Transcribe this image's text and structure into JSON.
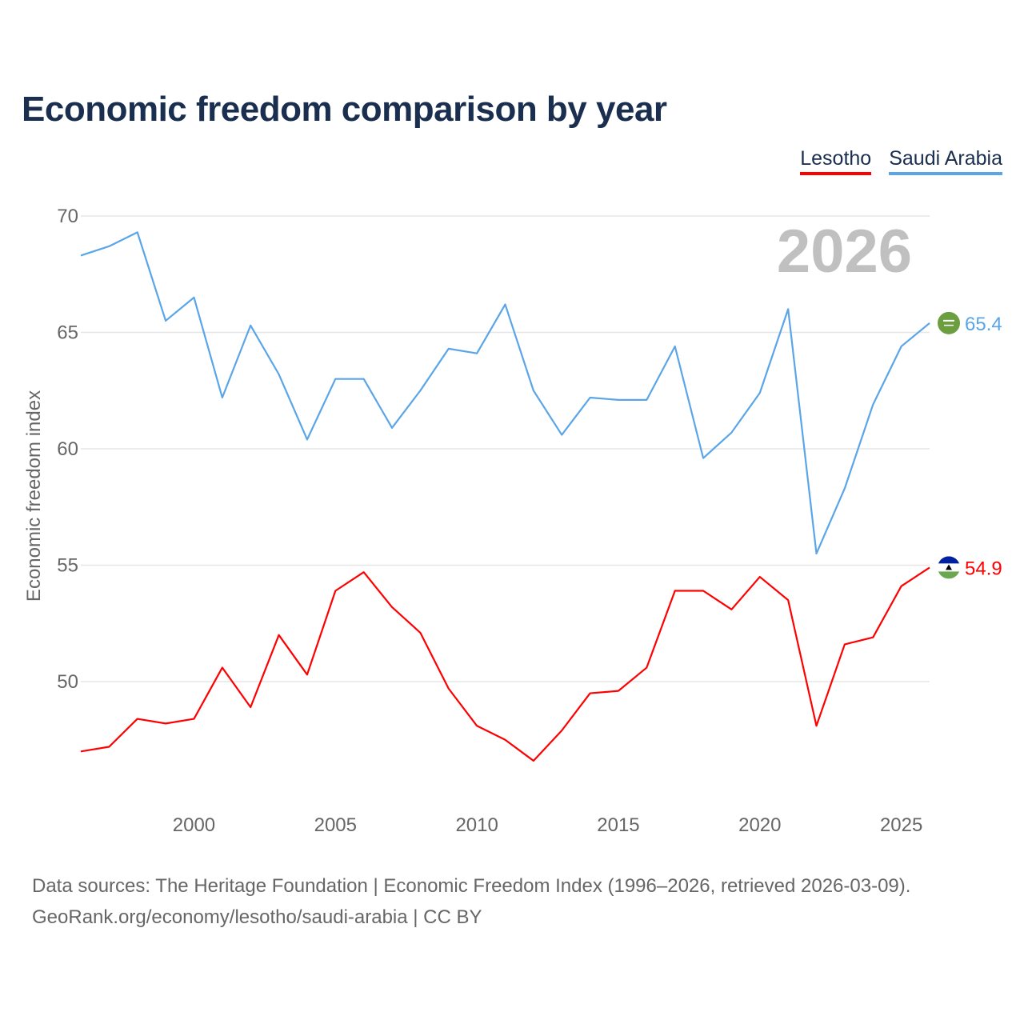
{
  "title": "Economic freedom comparison by year",
  "year_watermark": "2026",
  "footer": {
    "line1": "Data sources: The Heritage Foundation | Economic Freedom Index (1996–2026, retrieved 2026-03-09).",
    "line2": "GeoRank.org/economy/lesotho/saudi-arabia | CC BY"
  },
  "colors": {
    "lesotho": "#ff0000",
    "saudi": "#5aa5e8",
    "grid": "#e6e6e6",
    "watermark": "#c0c0c0"
  },
  "chart_data": {
    "type": "line",
    "title": "Economic freedom comparison by year",
    "xlabel": "",
    "ylabel": "Economic freedom index",
    "xlim": [
      1996,
      2026
    ],
    "ylim": [
      44.6,
      70.9
    ],
    "yticks": [
      50,
      55,
      60,
      65,
      70
    ],
    "xticks": [
      2000,
      2005,
      2010,
      2015,
      2020,
      2025
    ],
    "grid": true,
    "legend_position": "top-right",
    "x": [
      1996,
      1997,
      1998,
      1999,
      2000,
      2001,
      2002,
      2003,
      2004,
      2005,
      2006,
      2007,
      2008,
      2009,
      2010,
      2011,
      2012,
      2013,
      2014,
      2015,
      2016,
      2017,
      2018,
      2019,
      2020,
      2021,
      2022,
      2023,
      2024,
      2025,
      2026
    ],
    "series": [
      {
        "name": "Lesotho",
        "color": "#ff0000",
        "end_label": "54.9",
        "flag_icon": "lesotho-flag-icon",
        "values": [
          47.0,
          47.2,
          48.4,
          48.2,
          48.4,
          50.6,
          48.9,
          52.0,
          50.3,
          53.9,
          54.7,
          53.2,
          52.1,
          49.7,
          48.1,
          47.5,
          46.6,
          47.9,
          49.5,
          49.6,
          50.6,
          53.9,
          53.9,
          53.1,
          54.5,
          53.5,
          48.1,
          51.6,
          51.9,
          54.1,
          54.9
        ]
      },
      {
        "name": "Saudi Arabia",
        "color": "#5aa5e8",
        "end_label": "65.4",
        "flag_icon": "saudi-arabia-flag-icon",
        "values": [
          68.3,
          68.7,
          69.3,
          65.5,
          66.5,
          62.2,
          65.3,
          63.2,
          60.4,
          63.0,
          63.0,
          60.9,
          62.5,
          64.3,
          64.1,
          66.2,
          62.5,
          60.6,
          62.2,
          62.1,
          62.1,
          64.4,
          59.6,
          60.7,
          62.4,
          66.0,
          55.5,
          58.3,
          61.9,
          64.4,
          65.4
        ]
      }
    ]
  }
}
